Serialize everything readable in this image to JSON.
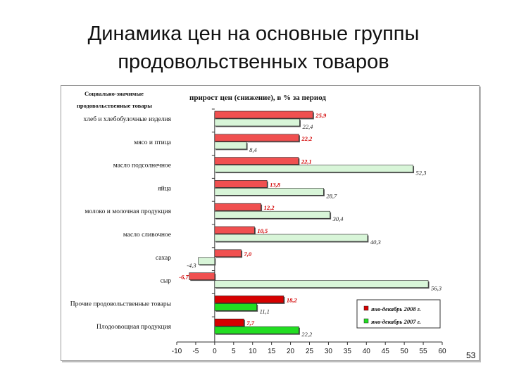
{
  "slide": {
    "title_line1": "Динамика цен на основные группы",
    "title_line2": "продовольственных  товаров",
    "page_number": "53"
  },
  "chart_data": {
    "type": "bar",
    "orientation": "horizontal",
    "title": "прирост цен (снижение), в % за период",
    "category_header_line1": "Социально-значимые",
    "category_header_line2": "продовольственные товары",
    "categories": [
      "хлеб и хлебобулочные изделия",
      "мясо и птица",
      "масло подсолнечное",
      "яйца",
      "молоко и молочная продукция",
      "масло сливочное",
      "сахар",
      "сыр",
      "Прочие продовольственные товары",
      "Плодоовощная продукция"
    ],
    "series": [
      {
        "name": "янв-декабрь 2008 г.",
        "values": [
          25.9,
          22.2,
          22.1,
          13.8,
          12.2,
          10.5,
          7.0,
          -6.7,
          18.2,
          7.7
        ],
        "labels": [
          "25,9",
          "22,2",
          "22,1",
          "13,8",
          "12,2",
          "10,5",
          "7,0",
          "-6,7",
          "18,2",
          "7,7"
        ],
        "color_main": "#f05050",
        "color_alt": "#d60000",
        "label_color": "#d20000"
      },
      {
        "name": "янв-декабрь 2007 г.",
        "values": [
          22.4,
          8.4,
          52.3,
          28.7,
          30.4,
          40.3,
          -4.3,
          56.3,
          11.1,
          22.2
        ],
        "labels": [
          "22,4",
          "8,4",
          "52,3",
          "28,7",
          "30,4",
          "40,3",
          "-4,3",
          "56,3",
          "11,1",
          "22,2"
        ],
        "color_main": "#d8f5d8",
        "color_alt": "#22dd22",
        "label_color": "#222222"
      }
    ],
    "x_ticks": [
      -10,
      -5,
      0,
      5,
      10,
      15,
      20,
      25,
      30,
      35,
      40,
      45,
      50,
      55,
      60
    ],
    "xlim": [
      -10,
      60
    ],
    "grid": false,
    "legend_position": "bottom-right"
  }
}
